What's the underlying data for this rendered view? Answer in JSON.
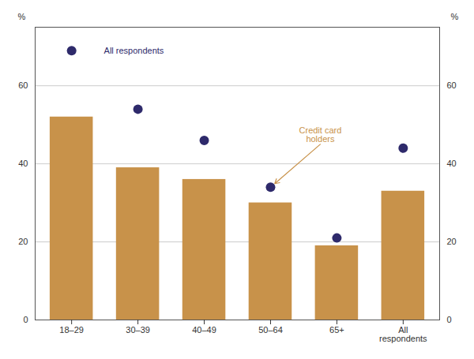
{
  "chart_data": {
    "type": "bar",
    "categories": [
      "18–29",
      "30–39",
      "40–49",
      "50–64",
      "65+",
      "All\nrespondents"
    ],
    "series": [
      {
        "name": "Credit card\nholders",
        "type": "bar",
        "color": "#C8924A",
        "values": [
          52,
          39,
          36,
          30,
          19,
          33
        ]
      },
      {
        "name": "All respondents",
        "type": "scatter",
        "color": "#2E2A6B",
        "values": [
          69,
          54,
          46,
          34,
          21,
          44
        ]
      }
    ],
    "ylim": [
      0,
      75
    ],
    "yticks": [
      0,
      20,
      40,
      60
    ],
    "ylabel": "%",
    "y2lim": [
      0,
      75
    ],
    "y2ticks": [
      0,
      20,
      40,
      60
    ],
    "y2label": "%",
    "grid": true
  }
}
